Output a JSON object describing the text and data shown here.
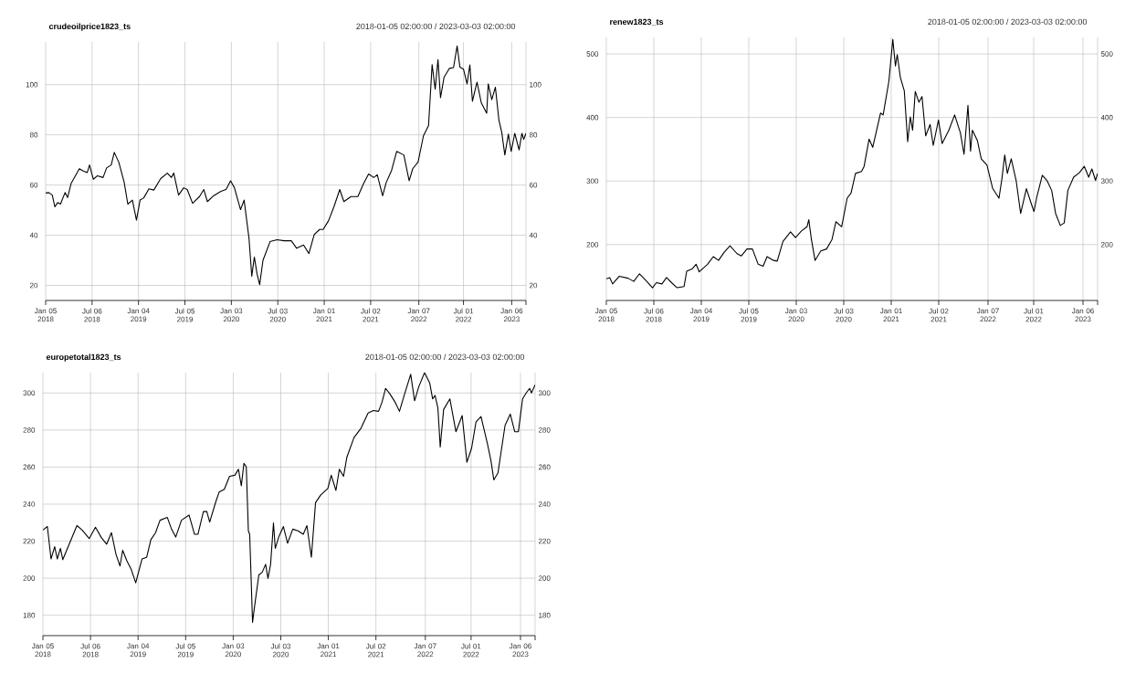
{
  "chart_data": [
    {
      "type": "line",
      "title": "crudeoilprice1823_ts",
      "subtitle": "2018-01-05 02:00:00 / 2023-03-03 02:00:00",
      "color": "#000000",
      "grid": true,
      "xlim": [
        "2018-01-05",
        "2023-03-03"
      ],
      "xticks": [
        {
          "value": "2018-01-05",
          "label": "Jan 05 2018"
        },
        {
          "value": "2018-07-06",
          "label": "Jul 06 2018"
        },
        {
          "value": "2019-01-04",
          "label": "Jan 04 2019"
        },
        {
          "value": "2019-07-05",
          "label": "Jul 05 2019"
        },
        {
          "value": "2020-01-03",
          "label": "Jan 03 2020"
        },
        {
          "value": "2020-07-03",
          "label": "Jul 03 2020"
        },
        {
          "value": "2021-01-01",
          "label": "Jan 01 2021"
        },
        {
          "value": "2021-07-02",
          "label": "Jul 02 2021"
        },
        {
          "value": "2022-01-07",
          "label": "Jan 07 2022"
        },
        {
          "value": "2022-07-01",
          "label": "Jul 01 2022"
        },
        {
          "value": "2023-01-06",
          "label": "Jan 06 2023"
        },
        {
          "value": "2023-03-03",
          "label": null
        }
      ],
      "ylim": [
        14,
        117
      ],
      "yticks": [
        20,
        40,
        60,
        80,
        100
      ],
      "y2lim": [
        14,
        117
      ],
      "y2ticks": [
        20,
        40,
        60,
        80,
        100
      ],
      "x": [
        "2018-01-05",
        "2018-01-17",
        "2018-01-31",
        "2018-02-10",
        "2018-02-21",
        "2018-03-04",
        "2018-03-22",
        "2018-04-01",
        "2018-04-15",
        "2018-05-17",
        "2018-06-03",
        "2018-06-17",
        "2018-06-26",
        "2018-07-11",
        "2018-07-27",
        "2018-08-18",
        "2018-09-01",
        "2018-09-19",
        "2018-10-01",
        "2018-10-19",
        "2018-11-09",
        "2018-11-23",
        "2018-12-11",
        "2018-12-27",
        "2019-01-10",
        "2019-01-24",
        "2019-02-14",
        "2019-03-05",
        "2019-04-01",
        "2019-04-27",
        "2019-05-13",
        "2019-05-22",
        "2019-06-10",
        "2019-06-30",
        "2019-07-14",
        "2019-08-04",
        "2019-08-31",
        "2019-09-17",
        "2019-10-01",
        "2019-10-25",
        "2019-11-23",
        "2019-12-13",
        "2019-12-31",
        "2020-01-15",
        "2020-02-08",
        "2020-02-22",
        "2020-03-12",
        "2020-03-23",
        "2020-04-02",
        "2020-04-13",
        "2020-04-23",
        "2020-05-06",
        "2020-06-03",
        "2020-06-30",
        "2020-07-28",
        "2020-08-25",
        "2020-09-15",
        "2020-10-12",
        "2020-11-02",
        "2020-11-23",
        "2020-12-14",
        "2020-12-28",
        "2021-01-18",
        "2021-02-08",
        "2021-03-03",
        "2021-03-19",
        "2021-04-16",
        "2021-05-13",
        "2021-06-03",
        "2021-06-24",
        "2021-07-14",
        "2021-07-28",
        "2021-08-18",
        "2021-09-01",
        "2021-09-22",
        "2021-10-12",
        "2021-11-09",
        "2021-11-30",
        "2021-12-14",
        "2022-01-04",
        "2022-01-25",
        "2022-02-14",
        "2022-02-28",
        "2022-03-12",
        "2022-03-23",
        "2022-04-02",
        "2022-04-16",
        "2022-05-07",
        "2022-05-23",
        "2022-06-06",
        "2022-06-17",
        "2022-07-01",
        "2022-07-15",
        "2022-07-26",
        "2022-08-05",
        "2022-08-23",
        "2022-09-09",
        "2022-09-30",
        "2022-10-06",
        "2022-10-20",
        "2022-11-03",
        "2022-11-17",
        "2022-11-28",
        "2022-12-10",
        "2022-12-24",
        "2023-01-04",
        "2023-01-18",
        "2023-02-04",
        "2023-02-15",
        "2023-02-22",
        "2023-03-03"
      ],
      "values": [
        56.8,
        57,
        56,
        51.3,
        53,
        52.4,
        57,
        55,
        60.7,
        66.5,
        65.5,
        65,
        68,
        62.3,
        63.7,
        63,
        66.8,
        68,
        73,
        69,
        61,
        52.4,
        54,
        46,
        54,
        54.8,
        58.5,
        58,
        62.6,
        64.7,
        63,
        64.8,
        56,
        58.9,
        58.2,
        52.7,
        55.4,
        58.2,
        53.4,
        55.7,
        57.5,
        58.2,
        61.7,
        58.9,
        50.2,
        54,
        38.9,
        23.7,
        31.3,
        24.4,
        20.3,
        30,
        37.5,
        38.2,
        37.8,
        37.8,
        34.8,
        36.1,
        32.7,
        40.3,
        42.3,
        42.3,
        45.8,
        51.3,
        58.2,
        53.4,
        55.4,
        55.4,
        60.3,
        64.4,
        63,
        64.1,
        55.7,
        61,
        65.8,
        73.4,
        72,
        61.7,
        66.5,
        69.2,
        79.6,
        83.7,
        108,
        98.2,
        110,
        94.8,
        103,
        106.5,
        106.8,
        115.4,
        107,
        106.2,
        100.3,
        107.9,
        93.4,
        101,
        92.7,
        88.6,
        100.3,
        94,
        99,
        85.8,
        81,
        72,
        80.3,
        73.4,
        80.6,
        74,
        80.6,
        78.2,
        80.6
      ]
    },
    {
      "type": "line",
      "title": "renew1823_ts",
      "subtitle": "2018-01-05 02:00:00 / 2023-03-03 02:00:00",
      "color": "#000000",
      "grid": true,
      "xlim": [
        "2018-01-05",
        "2023-03-03"
      ],
      "xticks": [
        {
          "value": "2018-01-05",
          "label": "Jan 05 2018"
        },
        {
          "value": "2018-07-06",
          "label": "Jul 06 2018"
        },
        {
          "value": "2019-01-04",
          "label": "Jan 04 2019"
        },
        {
          "value": "2019-07-05",
          "label": "Jul 05 2019"
        },
        {
          "value": "2020-01-03",
          "label": "Jan 03 2020"
        },
        {
          "value": "2020-07-03",
          "label": "Jul 03 2020"
        },
        {
          "value": "2021-01-01",
          "label": "Jan 01 2021"
        },
        {
          "value": "2021-07-02",
          "label": "Jul 02 2021"
        },
        {
          "value": "2022-01-07",
          "label": "Jan 07 2022"
        },
        {
          "value": "2022-07-01",
          "label": "Jul 01 2022"
        },
        {
          "value": "2023-01-06",
          "label": "Jan 06 2023"
        },
        {
          "value": "2023-03-03",
          "label": null
        }
      ],
      "ylim": [
        112,
        526
      ],
      "yticks": [
        200,
        300,
        400,
        500
      ],
      "y2lim": [
        112,
        526
      ],
      "y2ticks": [
        200,
        300,
        400,
        500
      ],
      "x": [
        "2018-01-05",
        "2018-01-18",
        "2018-01-29",
        "2018-02-23",
        "2018-03-29",
        "2018-04-20",
        "2018-05-12",
        "2018-06-09",
        "2018-07-01",
        "2018-07-16",
        "2018-08-06",
        "2018-08-24",
        "2018-09-12",
        "2018-10-03",
        "2018-10-30",
        "2018-11-09",
        "2018-12-01",
        "2018-12-15",
        "2018-12-27",
        "2019-01-28",
        "2019-02-19",
        "2019-03-11",
        "2019-04-02",
        "2019-04-24",
        "2019-05-20",
        "2019-06-06",
        "2019-06-28",
        "2019-07-19",
        "2019-08-10",
        "2019-08-29",
        "2019-09-13",
        "2019-10-08",
        "2019-10-22",
        "2019-11-13",
        "2019-12-12",
        "2019-12-31",
        "2020-01-22",
        "2020-02-13",
        "2020-02-20",
        "2020-03-01",
        "2020-03-15",
        "2020-04-06",
        "2020-04-28",
        "2020-05-19",
        "2020-06-03",
        "2020-06-25",
        "2020-07-16",
        "2020-07-31",
        "2020-08-17",
        "2020-09-09",
        "2020-09-19",
        "2020-10-08",
        "2020-10-22",
        "2020-11-21",
        "2020-12-01",
        "2020-12-23",
        "2021-01-07",
        "2021-01-17",
        "2021-01-24",
        "2021-02-05",
        "2021-02-20",
        "2021-03-05",
        "2021-03-15",
        "2021-03-24",
        "2021-04-03",
        "2021-04-17",
        "2021-04-29",
        "2021-05-13",
        "2021-05-30",
        "2021-06-11",
        "2021-07-01",
        "2021-07-15",
        "2021-08-10",
        "2021-09-01",
        "2021-09-23",
        "2021-10-07",
        "2021-10-22",
        "2021-11-01",
        "2021-11-08",
        "2021-11-27",
        "2021-12-12",
        "2022-01-03",
        "2022-01-25",
        "2022-02-18",
        "2022-03-01",
        "2022-03-12",
        "2022-03-22",
        "2022-04-06",
        "2022-04-25",
        "2022-05-12",
        "2022-06-03",
        "2022-06-22",
        "2022-07-02",
        "2022-07-12",
        "2022-08-03",
        "2022-08-22",
        "2022-09-08",
        "2022-09-23",
        "2022-10-11",
        "2022-10-26",
        "2022-11-09",
        "2022-12-01",
        "2022-12-23",
        "2023-01-11",
        "2023-01-28",
        "2023-02-09",
        "2023-02-23",
        "2023-03-03"
      ],
      "values": [
        146,
        148,
        138,
        150,
        147,
        142,
        154,
        142,
        132,
        140,
        138,
        148,
        140,
        132,
        134,
        158,
        162,
        169,
        157,
        169,
        181,
        175,
        188,
        198,
        186,
        182,
        193,
        193,
        169,
        166,
        181,
        175,
        174,
        205,
        220,
        211,
        221,
        228,
        239,
        208,
        175,
        190,
        193,
        208,
        236,
        228,
        273,
        281,
        312,
        315,
        323,
        366,
        353,
        407,
        404,
        457,
        523,
        481,
        499,
        463,
        442,
        362,
        401,
        380,
        441,
        424,
        433,
        371,
        389,
        356,
        396,
        359,
        380,
        404,
        376,
        342,
        419,
        347,
        380,
        364,
        335,
        325,
        288,
        273,
        303,
        341,
        312,
        335,
        300,
        249,
        288,
        264,
        252,
        273,
        309,
        300,
        285,
        249,
        230,
        234,
        285,
        306,
        313,
        323,
        306,
        319,
        301,
        312
      ]
    },
    {
      "type": "line",
      "title": "europetotal1823_ts",
      "subtitle": "2018-01-05 02:00:00 / 2023-03-03 02:00:00",
      "color": "#000000",
      "grid": true,
      "xlim": [
        "2018-01-05",
        "2023-03-03"
      ],
      "xticks": [
        {
          "value": "2018-01-05",
          "label": "Jan 05 2018"
        },
        {
          "value": "2018-07-06",
          "label": "Jul 06 2018"
        },
        {
          "value": "2019-01-04",
          "label": "Jan 04 2019"
        },
        {
          "value": "2019-07-05",
          "label": "Jul 05 2019"
        },
        {
          "value": "2020-01-03",
          "label": "Jan 03 2020"
        },
        {
          "value": "2020-07-03",
          "label": "Jul 03 2020"
        },
        {
          "value": "2021-01-01",
          "label": "Jan 01 2021"
        },
        {
          "value": "2021-07-02",
          "label": "Jul 02 2021"
        },
        {
          "value": "2022-01-07",
          "label": "Jan 07 2022"
        },
        {
          "value": "2022-07-01",
          "label": "Jul 01 2022"
        },
        {
          "value": "2023-01-06",
          "label": "Jan 06 2023"
        },
        {
          "value": "2023-03-03",
          "label": null
        }
      ],
      "ylim": [
        169,
        311
      ],
      "yticks": [
        180,
        200,
        220,
        240,
        260,
        280,
        300
      ],
      "y2lim": [
        169,
        311
      ],
      "y2ticks": [
        180,
        200,
        220,
        240,
        260,
        280,
        300
      ],
      "x": [
        "2018-01-05",
        "2018-01-22",
        "2018-02-05",
        "2018-02-19",
        "2018-03-01",
        "2018-03-13",
        "2018-03-22",
        "2018-05-15",
        "2018-06-04",
        "2018-07-01",
        "2018-07-25",
        "2018-08-17",
        "2018-09-06",
        "2018-09-24",
        "2018-10-12",
        "2018-10-27",
        "2018-11-06",
        "2018-11-22",
        "2018-12-09",
        "2018-12-26",
        "2019-01-19",
        "2019-02-06",
        "2019-02-22",
        "2019-03-12",
        "2019-03-29",
        "2019-04-26",
        "2019-05-12",
        "2019-05-28",
        "2019-06-19",
        "2019-07-18",
        "2019-08-08",
        "2019-08-21",
        "2019-09-11",
        "2019-09-24",
        "2019-10-05",
        "2019-10-28",
        "2019-11-10",
        "2019-11-30",
        "2019-12-20",
        "2020-01-09",
        "2020-01-23",
        "2020-02-03",
        "2020-02-13",
        "2020-02-22",
        "2020-03-01",
        "2020-03-06",
        "2020-03-17",
        "2020-03-27",
        "2020-04-10",
        "2020-04-23",
        "2020-05-06",
        "2020-05-15",
        "2020-05-25",
        "2020-06-05",
        "2020-06-12",
        "2020-06-25",
        "2020-07-13",
        "2020-07-29",
        "2020-08-18",
        "2020-09-07",
        "2020-09-27",
        "2020-10-11",
        "2020-10-28",
        "2020-11-13",
        "2020-12-03",
        "2020-12-30",
        "2021-01-12",
        "2021-01-30",
        "2021-02-12",
        "2021-02-28",
        "2021-03-13",
        "2021-04-09",
        "2021-05-06",
        "2021-06-02",
        "2021-06-22",
        "2021-07-12",
        "2021-07-25",
        "2021-08-08",
        "2021-08-24",
        "2021-09-14",
        "2021-09-30",
        "2021-10-20",
        "2021-11-12",
        "2021-11-27",
        "2021-12-13",
        "2022-01-04",
        "2022-01-24",
        "2022-02-04",
        "2022-02-13",
        "2022-02-24",
        "2022-03-05",
        "2022-03-18",
        "2022-04-11",
        "2022-05-04",
        "2022-05-28",
        "2022-06-15",
        "2022-07-03",
        "2022-07-20",
        "2022-08-08",
        "2022-09-01",
        "2022-09-15",
        "2022-09-26",
        "2022-10-12",
        "2022-11-08",
        "2022-11-28",
        "2022-12-15",
        "2022-12-29",
        "2023-01-14",
        "2023-01-28",
        "2023-02-10",
        "2023-02-17",
        "2023-03-03"
      ],
      "values": [
        226,
        227.9,
        210.4,
        217,
        210.4,
        216.1,
        210,
        228.4,
        226,
        221.4,
        227.5,
        221.8,
        218.4,
        224.6,
        212.7,
        206.6,
        215.1,
        209.4,
        204.7,
        197.5,
        210.4,
        211.3,
        220.8,
        224.6,
        231.3,
        232.8,
        226.5,
        222.2,
        231.3,
        234.1,
        223.7,
        223.7,
        236,
        236,
        230.3,
        241.1,
        246.5,
        248,
        255,
        255.6,
        258.8,
        249.9,
        262,
        260.1,
        225.6,
        223.7,
        176.2,
        187.2,
        201.8,
        203.2,
        207.5,
        199.9,
        207.5,
        229.8,
        216.1,
        222.2,
        227.9,
        218.9,
        226.5,
        225.6,
        223.7,
        228.4,
        211.3,
        240.8,
        245,
        248.4,
        255.6,
        247.4,
        258.8,
        255,
        265.4,
        275.9,
        281,
        289.2,
        290.5,
        290.1,
        294.9,
        302.5,
        299.6,
        294.9,
        290.1,
        299.6,
        310.1,
        295.8,
        303.4,
        311,
        305.3,
        296.8,
        298.7,
        292,
        270.8,
        291.1,
        296.8,
        279.1,
        287.8,
        262.6,
        270.2,
        284.4,
        287.3,
        273,
        263.5,
        253.1,
        256.9,
        282.5,
        288.6,
        279.1,
        279.1,
        296.8,
        300,
        302.5,
        300,
        304.4
      ]
    }
  ]
}
